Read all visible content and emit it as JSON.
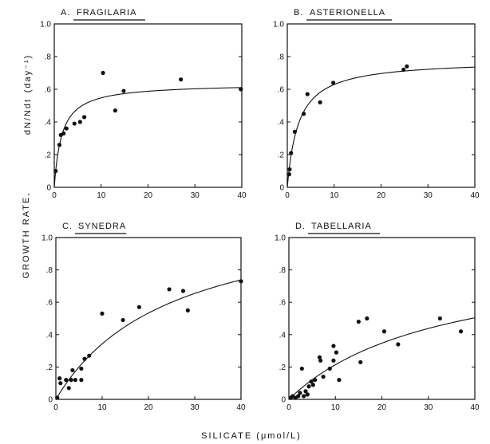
{
  "figure": {
    "ylabel_main": "GROWTH RATE,",
    "ylabel_formula": "dN/Ndt",
    "ylabel_unit": "(day⁻¹)",
    "xlabel": "SILICATE (μmol/L)"
  },
  "style": {
    "ink": "#111111",
    "background": "#ffffff"
  },
  "chart_data": [
    {
      "type": "scatter",
      "panel": "A.",
      "title": "FRAGILARIA",
      "xlim": [
        0,
        40
      ],
      "ylim": [
        0,
        1.0
      ],
      "xticks": [
        0,
        10,
        20,
        30,
        40
      ],
      "yticks": [
        0,
        0.2,
        0.4,
        0.6,
        0.8,
        1.0
      ],
      "ytick_labels": [
        "0",
        ".2",
        ".4",
        ".6",
        ".8",
        "1.0"
      ],
      "points": [
        [
          0.3,
          0.1
        ],
        [
          1.1,
          0.26
        ],
        [
          1.4,
          0.32
        ],
        [
          2,
          0.33
        ],
        [
          2.6,
          0.36
        ],
        [
          4.3,
          0.39
        ],
        [
          5.5,
          0.4
        ],
        [
          6.4,
          0.43
        ],
        [
          10.4,
          0.7
        ],
        [
          13,
          0.47
        ],
        [
          14.8,
          0.59
        ],
        [
          27,
          0.66
        ],
        [
          39.8,
          0.6
        ]
      ],
      "fit": {
        "model": "michaelis-menten",
        "vmax": 0.635,
        "ks": 1.6
      }
    },
    {
      "type": "scatter",
      "panel": "B.",
      "title": "ASTERIONELLA",
      "xlim": [
        0,
        40
      ],
      "ylim": [
        0,
        1.0
      ],
      "xticks": [
        0,
        10,
        20,
        30,
        40
      ],
      "yticks": [
        0,
        0.2,
        0.4,
        0.6,
        0.8,
        1.0
      ],
      "ytick_labels": [
        "0",
        ".2",
        ".4",
        ".6",
        ".8",
        "1.0"
      ],
      "points": [
        [
          0.4,
          0.08
        ],
        [
          0.5,
          0.11
        ],
        [
          0.8,
          0.21
        ],
        [
          1.6,
          0.34
        ],
        [
          3.5,
          0.45
        ],
        [
          4.3,
          0.57
        ],
        [
          7,
          0.52
        ],
        [
          9.8,
          0.64
        ],
        [
          24.8,
          0.72
        ],
        [
          25.5,
          0.74
        ]
      ],
      "fit": {
        "model": "michaelis-menten",
        "vmax": 0.78,
        "ks": 2.4
      }
    },
    {
      "type": "scatter",
      "panel": "C.",
      "title": "SYNEDRA",
      "xlim": [
        0,
        40
      ],
      "ylim": [
        0,
        1.0
      ],
      "xticks": [
        0,
        10,
        20,
        30,
        40
      ],
      "yticks": [
        0,
        0.2,
        0.4,
        0.6,
        0.8,
        1.0
      ],
      "ytick_labels": [
        "0",
        ".2",
        ".4",
        ".6",
        ".8",
        "1.0"
      ],
      "points": [
        [
          0.3,
          0.01
        ],
        [
          0.8,
          0.13
        ],
        [
          1,
          0.1
        ],
        [
          2.2,
          0.12
        ],
        [
          2.8,
          0.07
        ],
        [
          3.3,
          0.12
        ],
        [
          3.6,
          0.18
        ],
        [
          4.2,
          0.12
        ],
        [
          5.5,
          0.19
        ],
        [
          5.5,
          0.12
        ],
        [
          6.2,
          0.25
        ],
        [
          7.2,
          0.27
        ],
        [
          10,
          0.53
        ],
        [
          14.5,
          0.49
        ],
        [
          18,
          0.57
        ],
        [
          24.5,
          0.68
        ],
        [
          27.5,
          0.67
        ],
        [
          28.5,
          0.55
        ],
        [
          40,
          0.73
        ]
      ],
      "fit": {
        "model": "michaelis-menten",
        "vmax": 1.2,
        "ks": 25
      }
    },
    {
      "type": "scatter",
      "panel": "D.",
      "title": "TABELLARIA",
      "xlim": [
        0,
        40
      ],
      "ylim": [
        0,
        1.0
      ],
      "xticks": [
        0,
        10,
        20,
        30,
        40
      ],
      "yticks": [
        0,
        0.2,
        0.4,
        0.6,
        0.8,
        1.0
      ],
      "ytick_labels": [
        "0",
        ".2",
        ".4",
        ".6",
        ".8",
        "1.0"
      ],
      "points": [
        [
          0.4,
          0.01
        ],
        [
          0.8,
          0.02
        ],
        [
          1.4,
          0.01
        ],
        [
          2,
          0.02
        ],
        [
          2.4,
          0.04
        ],
        [
          2.8,
          0.19
        ],
        [
          3.2,
          0.02
        ],
        [
          3.6,
          0.05
        ],
        [
          4,
          0.03
        ],
        [
          4.3,
          0.08
        ],
        [
          4.8,
          0.11
        ],
        [
          5.2,
          0.09
        ],
        [
          5.6,
          0.12
        ],
        [
          6.6,
          0.26
        ],
        [
          6.8,
          0.24
        ],
        [
          7.4,
          0.14
        ],
        [
          8.8,
          0.19
        ],
        [
          9.6,
          0.33
        ],
        [
          9.6,
          0.24
        ],
        [
          10.2,
          0.29
        ],
        [
          10.8,
          0.12
        ],
        [
          15,
          0.48
        ],
        [
          15.4,
          0.23
        ],
        [
          16.8,
          0.5
        ],
        [
          20.5,
          0.42
        ],
        [
          23.5,
          0.34
        ],
        [
          32.5,
          0.5
        ],
        [
          37,
          0.42
        ]
      ],
      "fit": {
        "model": "michaelis-menten",
        "vmax": 0.92,
        "ks": 33
      }
    }
  ]
}
